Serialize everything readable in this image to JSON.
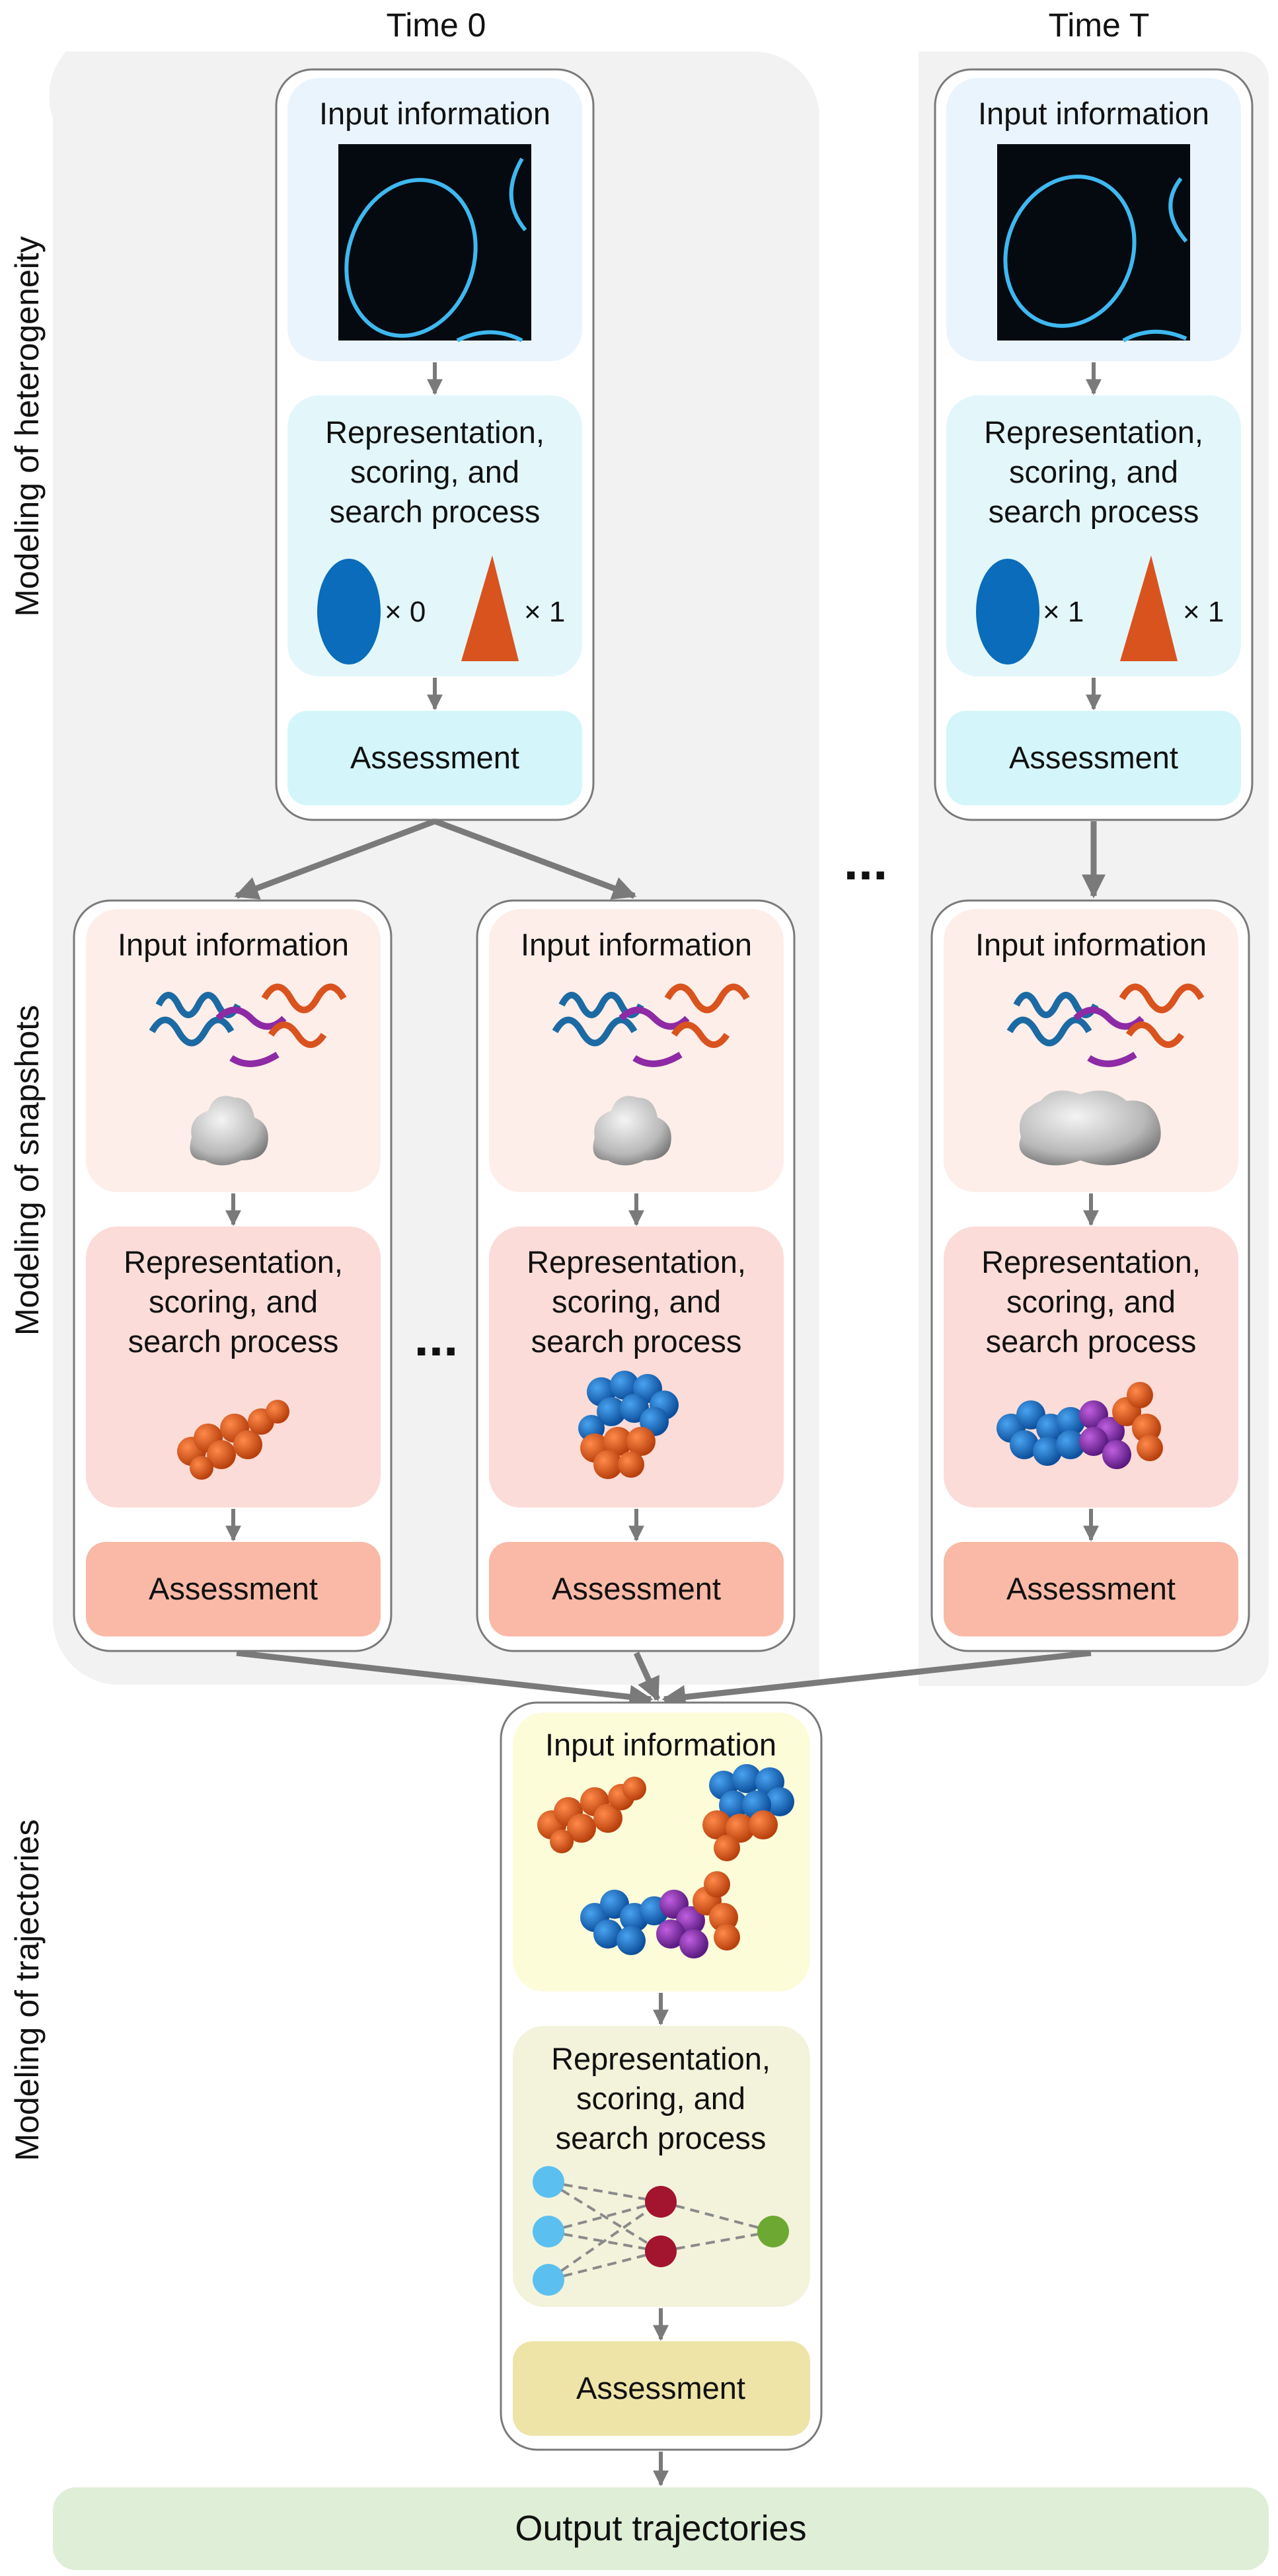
{
  "headers": {
    "time0": "Time 0",
    "timeT": "Time T"
  },
  "side_labels": {
    "heterogeneity": "Modeling of heterogeneity",
    "snapshots": "Modeling of snapshots",
    "trajectories": "Modeling of trajectories"
  },
  "common": {
    "input_information": "Input information",
    "representation_line1": "Representation,",
    "representation_line2": "scoring, and",
    "representation_line3": "search process",
    "assessment": "Assessment",
    "ellipsis": "..."
  },
  "heterogeneity": {
    "time0": {
      "ellipse_count": "× 0",
      "triangle_count": "× 1"
    },
    "timeT": {
      "ellipse_count": "× 1",
      "triangle_count": "× 1"
    }
  },
  "output": {
    "label": "Output trajectories"
  },
  "colors": {
    "het_input_bg": "#eaf4fd",
    "het_rep_bg": "#e3f7fb",
    "het_assess_bg": "#d4f6fa",
    "snap_input_bg": "#fdeee9",
    "snap_rep_bg": "#fbdcd8",
    "snap_assess_bg": "#f9b9a6",
    "traj_input_bg": "#fcfcd9",
    "traj_rep_bg": "#f3f3dc",
    "traj_assess_bg": "#eee4a8",
    "output_bg": "#dfeed6",
    "panel_bg": "#f2f2f2",
    "shape_blue": "#0a6cba",
    "shape_orange": "#d9531e",
    "node_blue": "#5bc0f0",
    "node_red": "#a3142e",
    "node_green": "#6da832"
  }
}
